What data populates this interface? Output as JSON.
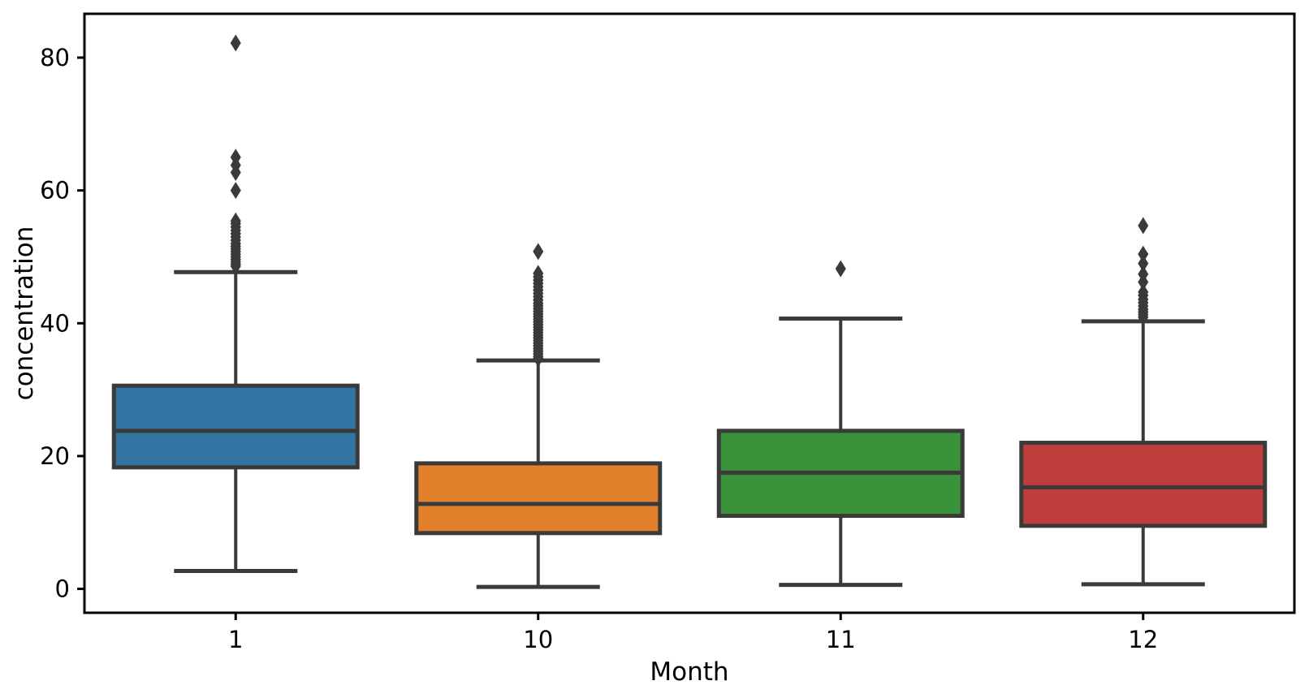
{
  "chart_data": {
    "type": "boxplot",
    "title": "",
    "xlabel": "Month",
    "ylabel": "concentration",
    "categories": [
      "1",
      "10",
      "11",
      "12"
    ],
    "ylim": [
      -3.6,
      86.6
    ],
    "yticks": [
      0,
      20,
      40,
      60,
      80
    ],
    "ytick_labels": [
      "0",
      "20",
      "40",
      "60",
      "80"
    ],
    "grid": false,
    "legend": "none",
    "colors": {
      "box_edge": "#3a3a3a",
      "outlier": "#3a3a3a",
      "axis_line": "#000000",
      "background": "#ffffff"
    },
    "series": [
      {
        "label": "1",
        "color": "#3274a1",
        "whisker_low": 2.7,
        "q1": 18.3,
        "median": 23.8,
        "q3": 30.6,
        "whisker_high": 47.7,
        "outliers": [
          48.6,
          48.9,
          49.2,
          49.6,
          50.0,
          50.4,
          50.8,
          51.2,
          51.6,
          52.0,
          52.5,
          53.0,
          53.5,
          54.0,
          54.5,
          55.0,
          55.4,
          60.0,
          62.7,
          63.8,
          65.0,
          82.2
        ]
      },
      {
        "label": "10",
        "color": "#e1812c",
        "whisker_low": 0.3,
        "q1": 8.4,
        "median": 12.8,
        "q3": 18.9,
        "whisker_high": 34.4,
        "outliers": [
          34.7,
          35.0,
          35.4,
          35.8,
          36.2,
          36.6,
          37.0,
          37.4,
          37.8,
          38.2,
          38.6,
          39.0,
          39.4,
          39.8,
          40.2,
          40.6,
          41.0,
          41.4,
          41.8,
          42.2,
          42.6,
          43.0,
          43.5,
          44.0,
          44.5,
          45.0,
          45.5,
          46.0,
          46.5,
          47.0,
          47.5,
          50.8
        ]
      },
      {
        "label": "11",
        "color": "#3a923a",
        "whisker_low": 0.6,
        "q1": 11.0,
        "median": 17.5,
        "q3": 23.8,
        "whisker_high": 40.7,
        "outliers": [
          48.2
        ]
      },
      {
        "label": "12",
        "color": "#c03d3e",
        "whisker_low": 0.7,
        "q1": 9.5,
        "median": 15.3,
        "q3": 22.0,
        "whisker_high": 40.3,
        "outliers": [
          40.9,
          41.3,
          41.7,
          42.1,
          42.6,
          43.1,
          43.6,
          44.2,
          44.7,
          46.2,
          47.4,
          49.0,
          50.4,
          54.7
        ]
      }
    ]
  }
}
